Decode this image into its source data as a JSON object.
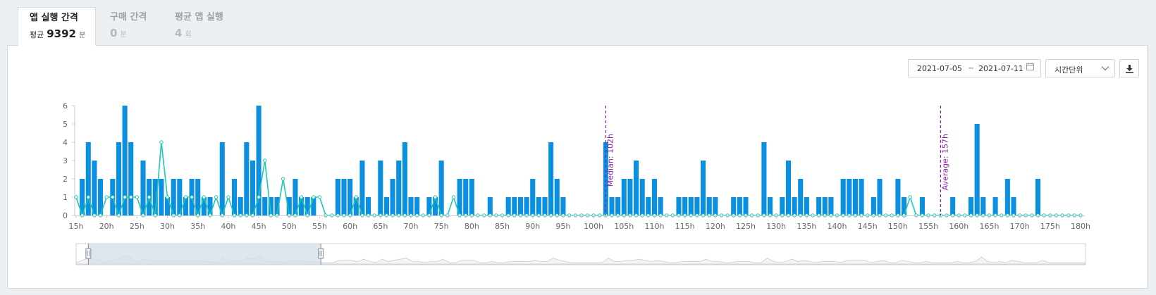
{
  "tabs": [
    {
      "label": "앱 실행 간격",
      "prefix": "평균",
      "value": "9392",
      "unit": "분",
      "active": true
    },
    {
      "label": "구매 간격",
      "prefix": "",
      "value": "0",
      "unit": "분",
      "active": false
    },
    {
      "label": "평균 앱 실행",
      "prefix": "",
      "value": "4",
      "unit": "회",
      "active": false
    }
  ],
  "controls": {
    "date_from": "2021-07-05",
    "date_sep": "~",
    "date_to": "2021-07-11",
    "unit_select": "시간단위",
    "icons": [
      "calendar-icon",
      "chevron-down-icon",
      "download-icon"
    ]
  },
  "colors": {
    "bar": "#0a8fe1",
    "line": "#1ec8b4",
    "reference": "#8b1aa8",
    "navigator_selection": "#d5dde8"
  },
  "chart_data": {
    "type": "bar",
    "xlim": [
      15,
      180
    ],
    "ylim": [
      0,
      6
    ],
    "y_ticks": [
      0,
      1,
      2,
      3,
      4,
      5,
      6
    ],
    "x_ticks": [
      "15h",
      "20h",
      "25h",
      "30h",
      "35h",
      "40h",
      "45h",
      "50h",
      "55h",
      "60h",
      "65h",
      "70h",
      "75h",
      "80h",
      "85h",
      "90h",
      "95h",
      "100h",
      "105h",
      "110h",
      "115h",
      "120h",
      "125h",
      "130h",
      "135h",
      "140h",
      "145h",
      "150h",
      "155h",
      "160h",
      "165h",
      "170h",
      "175h",
      "180h"
    ],
    "bars": [
      [
        16,
        2
      ],
      [
        17,
        4
      ],
      [
        18,
        3
      ],
      [
        19,
        2
      ],
      [
        21,
        2
      ],
      [
        22,
        4
      ],
      [
        23,
        6
      ],
      [
        24,
        4
      ],
      [
        26,
        3
      ],
      [
        27,
        2
      ],
      [
        28,
        2
      ],
      [
        29,
        2
      ],
      [
        30,
        1
      ],
      [
        31,
        2
      ],
      [
        32,
        2
      ],
      [
        33,
        1
      ],
      [
        34,
        2
      ],
      [
        35,
        2
      ],
      [
        36,
        1
      ],
      [
        37,
        1
      ],
      [
        39,
        4
      ],
      [
        41,
        2
      ],
      [
        42,
        1
      ],
      [
        43,
        4
      ],
      [
        44,
        3
      ],
      [
        45,
        6
      ],
      [
        46,
        1
      ],
      [
        47,
        1
      ],
      [
        48,
        1
      ],
      [
        50,
        1
      ],
      [
        51,
        2
      ],
      [
        52,
        1
      ],
      [
        53,
        1
      ],
      [
        54,
        1
      ],
      [
        58,
        2
      ],
      [
        59,
        2
      ],
      [
        60,
        2
      ],
      [
        61,
        1
      ],
      [
        62,
        3
      ],
      [
        63,
        1
      ],
      [
        65,
        3
      ],
      [
        66,
        1
      ],
      [
        67,
        2
      ],
      [
        68,
        3
      ],
      [
        69,
        4
      ],
      [
        70,
        1
      ],
      [
        71,
        1
      ],
      [
        73,
        1
      ],
      [
        74,
        1
      ],
      [
        75,
        3
      ],
      [
        78,
        2
      ],
      [
        79,
        2
      ],
      [
        80,
        2
      ],
      [
        83,
        1
      ],
      [
        86,
        1
      ],
      [
        87,
        1
      ],
      [
        88,
        1
      ],
      [
        89,
        1
      ],
      [
        90,
        2
      ],
      [
        91,
        1
      ],
      [
        92,
        1
      ],
      [
        93,
        4
      ],
      [
        94,
        2
      ],
      [
        95,
        1
      ],
      [
        102,
        4
      ],
      [
        103,
        1
      ],
      [
        104,
        1
      ],
      [
        105,
        2
      ],
      [
        106,
        2
      ],
      [
        107,
        3
      ],
      [
        108,
        2
      ],
      [
        109,
        1
      ],
      [
        110,
        2
      ],
      [
        111,
        1
      ],
      [
        114,
        1
      ],
      [
        115,
        1
      ],
      [
        116,
        1
      ],
      [
        117,
        1
      ],
      [
        118,
        3
      ],
      [
        119,
        1
      ],
      [
        120,
        1
      ],
      [
        123,
        1
      ],
      [
        124,
        1
      ],
      [
        125,
        1
      ],
      [
        128,
        4
      ],
      [
        129,
        1
      ],
      [
        131,
        1
      ],
      [
        132,
        3
      ],
      [
        133,
        1
      ],
      [
        134,
        2
      ],
      [
        135,
        1
      ],
      [
        137,
        1
      ],
      [
        138,
        1
      ],
      [
        139,
        1
      ],
      [
        141,
        2
      ],
      [
        142,
        2
      ],
      [
        143,
        2
      ],
      [
        144,
        2
      ],
      [
        146,
        1
      ],
      [
        147,
        2
      ],
      [
        150,
        2
      ],
      [
        151,
        1
      ],
      [
        154,
        1
      ],
      [
        159,
        1
      ],
      [
        162,
        1
      ],
      [
        163,
        5
      ],
      [
        164,
        1
      ],
      [
        166,
        1
      ],
      [
        168,
        2
      ],
      [
        169,
        1
      ],
      [
        173,
        2
      ]
    ],
    "line_points": [
      [
        15,
        1
      ],
      [
        16,
        0
      ],
      [
        17,
        1
      ],
      [
        18,
        0
      ],
      [
        19,
        0
      ],
      [
        20,
        1
      ],
      [
        21,
        1
      ],
      [
        22,
        0
      ],
      [
        23,
        1
      ],
      [
        24,
        1
      ],
      [
        25,
        1
      ],
      [
        26,
        0
      ],
      [
        27,
        1
      ],
      [
        28,
        0
      ],
      [
        29,
        4
      ],
      [
        30,
        1
      ],
      [
        31,
        0
      ],
      [
        32,
        0
      ],
      [
        33,
        1
      ],
      [
        34,
        1
      ],
      [
        35,
        0
      ],
      [
        36,
        1
      ],
      [
        37,
        0
      ],
      [
        38,
        1
      ],
      [
        39,
        0
      ],
      [
        40,
        1
      ],
      [
        41,
        0
      ],
      [
        42,
        0
      ],
      [
        43,
        0
      ],
      [
        44,
        0
      ],
      [
        45,
        1
      ],
      [
        46,
        3
      ],
      [
        47,
        0
      ],
      [
        48,
        0
      ],
      [
        49,
        2
      ],
      [
        50,
        0
      ],
      [
        51,
        0
      ],
      [
        52,
        1
      ],
      [
        53,
        0
      ],
      [
        54,
        1
      ],
      [
        55,
        1
      ],
      [
        56,
        0
      ],
      [
        57,
        0
      ],
      [
        58,
        0
      ],
      [
        59,
        0
      ],
      [
        60,
        0
      ],
      [
        61,
        1
      ],
      [
        62,
        0
      ],
      [
        63,
        0
      ],
      [
        64,
        0
      ],
      [
        65,
        0
      ],
      [
        66,
        0
      ],
      [
        67,
        0
      ],
      [
        68,
        0
      ],
      [
        69,
        0
      ],
      [
        70,
        0
      ],
      [
        71,
        0
      ],
      [
        72,
        0
      ],
      [
        73,
        0
      ],
      [
        74,
        1
      ],
      [
        75,
        0
      ],
      [
        76,
        0
      ],
      [
        77,
        1
      ],
      [
        78,
        0
      ],
      [
        150,
        0
      ],
      [
        151,
        0
      ],
      [
        152,
        1
      ],
      [
        153,
        0
      ],
      [
        180,
        0
      ]
    ],
    "reference_lines": [
      {
        "x": 102,
        "label": "Median: 102h"
      },
      {
        "x": 157,
        "label": "Average: 157h"
      }
    ]
  },
  "navigator": {
    "range": [
      17,
      55
    ]
  }
}
